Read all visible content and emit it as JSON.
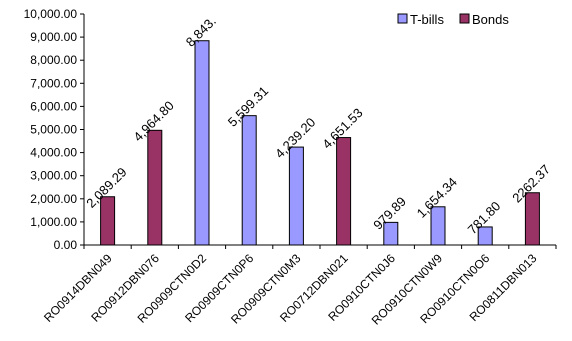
{
  "chart_data": {
    "type": "bar",
    "categories": [
      "RO0914DBN049",
      "RO0912DBN076",
      "RO0909CTN0D2",
      "RO0909CTN0P6",
      "RO0909CTN0M3",
      "RO0712DBN021",
      "RO0910CTN0J6",
      "RO0910CTN0W9",
      "RO0910CTN0O6",
      "RO0811DBN013"
    ],
    "values": [
      2089.29,
      4964.8,
      8843.0,
      5599.31,
      4239.2,
      4651.53,
      979.89,
      1654.34,
      781.8,
      2262.37
    ],
    "bar_types": [
      "Bonds",
      "Bonds",
      "T-bills",
      "T-bills",
      "T-bills",
      "Bonds",
      "T-bills",
      "T-bills",
      "T-bills",
      "Bonds"
    ],
    "data_labels": [
      "2,089.29",
      "4,964.80",
      "8,843.",
      "5,599.31",
      "4,239.20",
      "4,651.53",
      "979.89",
      "1,654.34",
      "781.80",
      "2262.37"
    ],
    "series": [
      {
        "name": "T-bills",
        "color": "#9999ff"
      },
      {
        "name": "Bonds",
        "color": "#993366"
      }
    ],
    "ylim": [
      0,
      10000
    ],
    "yticks": [
      "0.00",
      "1,000.00",
      "2,000.00",
      "3,000.00",
      "4,000.00",
      "5,000.00",
      "6,000.00",
      "7,000.00",
      "8,000.00",
      "9,000.00",
      "10,000.00"
    ],
    "grid": false,
    "legend_position": "top-right",
    "title": "",
    "xlabel": "",
    "ylabel": ""
  }
}
